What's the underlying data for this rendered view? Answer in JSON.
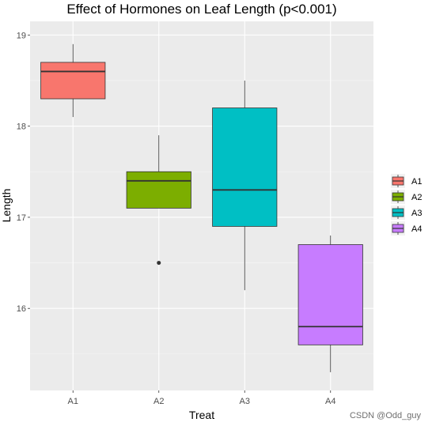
{
  "chart_data": {
    "type": "boxplot",
    "title": "Effect of Hormones on Leaf Length (p<0.001)",
    "xlabel": "Treat",
    "ylabel": "Length",
    "ylim": [
      15.1,
      19.15
    ],
    "yticks": [
      16,
      17,
      18,
      19
    ],
    "grid": true,
    "legend": {
      "placement": "right",
      "entries": [
        "A1",
        "A2",
        "A3",
        "A4"
      ]
    },
    "categories": [
      "A1",
      "A2",
      "A3",
      "A4"
    ],
    "series": [
      {
        "category": "A1",
        "color": "#F8766D",
        "min": 18.1,
        "q1": 18.3,
        "median": 18.6,
        "q3": 18.7,
        "max": 18.9,
        "outliers": []
      },
      {
        "category": "A2",
        "color": "#7CAE00",
        "min": 16.5,
        "q1": 17.1,
        "median": 17.4,
        "q3": 17.5,
        "max": 17.9,
        "outliers": [
          16.5
        ],
        "whisker_low": 17.1
      },
      {
        "category": "A3",
        "color": "#00BFC4",
        "min": 16.2,
        "q1": 16.9,
        "median": 17.3,
        "q3": 18.2,
        "max": 18.5,
        "outliers": []
      },
      {
        "category": "A4",
        "color": "#C77CFF",
        "min": 15.3,
        "q1": 15.6,
        "median": 15.8,
        "q3": 16.7,
        "max": 16.8,
        "outliers": []
      }
    ]
  },
  "watermark": "CSDN @Odd_guy"
}
